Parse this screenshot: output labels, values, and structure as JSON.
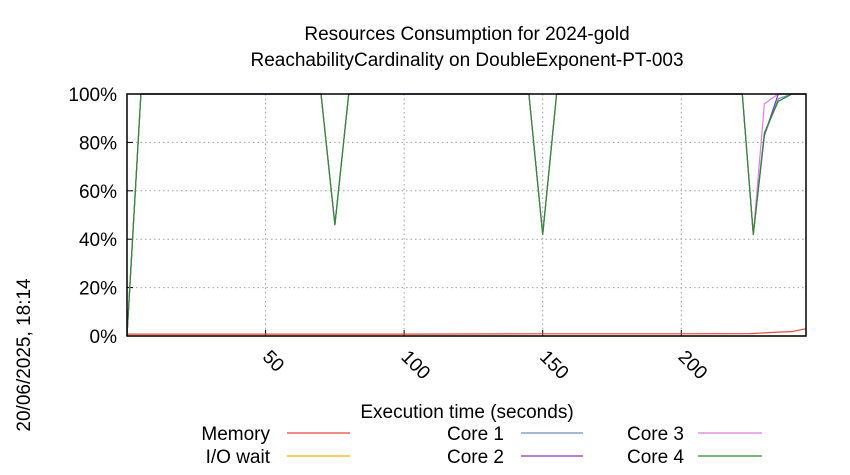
{
  "chart_data": {
    "type": "line",
    "title_lines": [
      "Resources Consumption for 2024-gold",
      "ReachabilityCardinality on DoubleExponent-PT-003"
    ],
    "xlabel": "Execution time (seconds)",
    "ylabel": "",
    "side_label": "20/06/2025, 18:14",
    "xlim": [
      0,
      245
    ],
    "ylim": [
      0,
      100
    ],
    "x_ticks": [
      50,
      100,
      150,
      200
    ],
    "y_ticks": [
      {
        "value": 0,
        "label": "0%"
      },
      {
        "value": 20,
        "label": "20%"
      },
      {
        "value": 40,
        "label": "40%"
      },
      {
        "value": 60,
        "label": "60%"
      },
      {
        "value": 80,
        "label": "80%"
      },
      {
        "value": 100,
        "label": "100%"
      }
    ],
    "grid": true,
    "legend_position": "bottom",
    "series": [
      {
        "name": "Memory",
        "color": "#e8473c",
        "x": [
          0,
          50,
          100,
          150,
          200,
          225,
          235,
          240,
          245
        ],
        "y": [
          0.8,
          0.8,
          0.8,
          0.9,
          0.9,
          1.0,
          1.6,
          1.8,
          3.0
        ]
      },
      {
        "name": "I/O wait",
        "color": "#f0b000",
        "x": [
          0,
          245
        ],
        "y": [
          0,
          0
        ]
      },
      {
        "name": "Core 1",
        "color": "#6c8ebf",
        "x": [
          0,
          5,
          70,
          75,
          80,
          145,
          150,
          155,
          222,
          226,
          230,
          235,
          240,
          245
        ],
        "y": [
          0,
          100,
          100,
          46,
          100,
          100,
          42,
          100,
          100,
          42,
          83,
          98,
          100,
          100
        ]
      },
      {
        "name": "Core 2",
        "color": "#7b3fbf",
        "x": [
          0,
          5,
          70,
          75,
          80,
          145,
          150,
          155,
          222,
          226,
          230,
          235,
          240,
          245
        ],
        "y": [
          0,
          100,
          100,
          46,
          100,
          100,
          42,
          100,
          100,
          42,
          83,
          100,
          100,
          100
        ]
      },
      {
        "name": "Core 3",
        "color": "#e27be8",
        "x": [
          0,
          5,
          70,
          75,
          80,
          145,
          150,
          155,
          222,
          226,
          230,
          235,
          240,
          245
        ],
        "y": [
          0,
          100,
          100,
          46,
          100,
          100,
          42,
          100,
          100,
          42,
          96,
          100,
          100,
          100
        ]
      },
      {
        "name": "Core 4",
        "color": "#2e8b2e",
        "x": [
          0,
          5,
          70,
          75,
          80,
          145,
          150,
          155,
          222,
          226,
          230,
          235,
          240,
          245
        ],
        "y": [
          0,
          100,
          100,
          46,
          100,
          100,
          42,
          100,
          100,
          42,
          84,
          97,
          100,
          100
        ]
      }
    ]
  }
}
